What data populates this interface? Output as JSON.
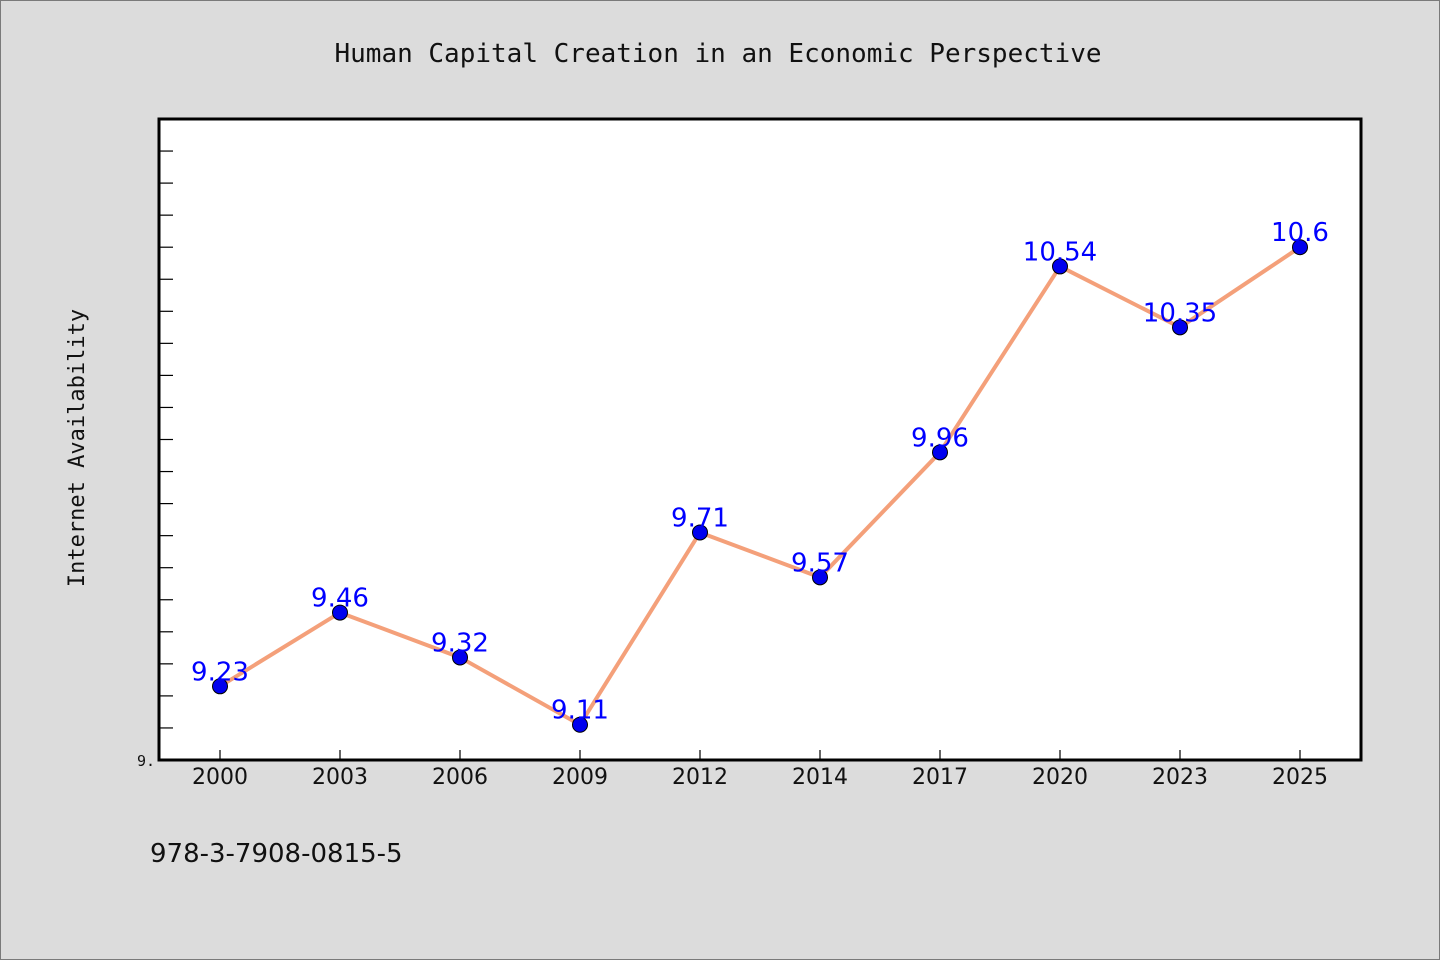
{
  "chart_data": {
    "type": "line",
    "title": "Human Capital Creation in an Economic Perspective",
    "xlabel": "",
    "ylabel": "Internet Availability",
    "categories": [
      "2000",
      "2003",
      "2006",
      "2009",
      "2012",
      "2014",
      "2017",
      "2020",
      "2023",
      "2025"
    ],
    "series": [
      {
        "values": [
          9.23,
          9.46,
          9.32,
          9.11,
          9.71,
          9.57,
          9.96,
          10.54,
          10.35,
          10.6
        ]
      }
    ],
    "ylim": [
      9.0,
      11.0
    ],
    "y_tick_label": "9.",
    "grid": false,
    "colors": {
      "line": "#f4a07a",
      "marker": "#0000ee",
      "data_label": "#0000ff",
      "plot_background": "#ffffff",
      "page_background": "#dcdcdc"
    }
  },
  "footer": {
    "identifier": "978-3-7908-0815-5"
  }
}
